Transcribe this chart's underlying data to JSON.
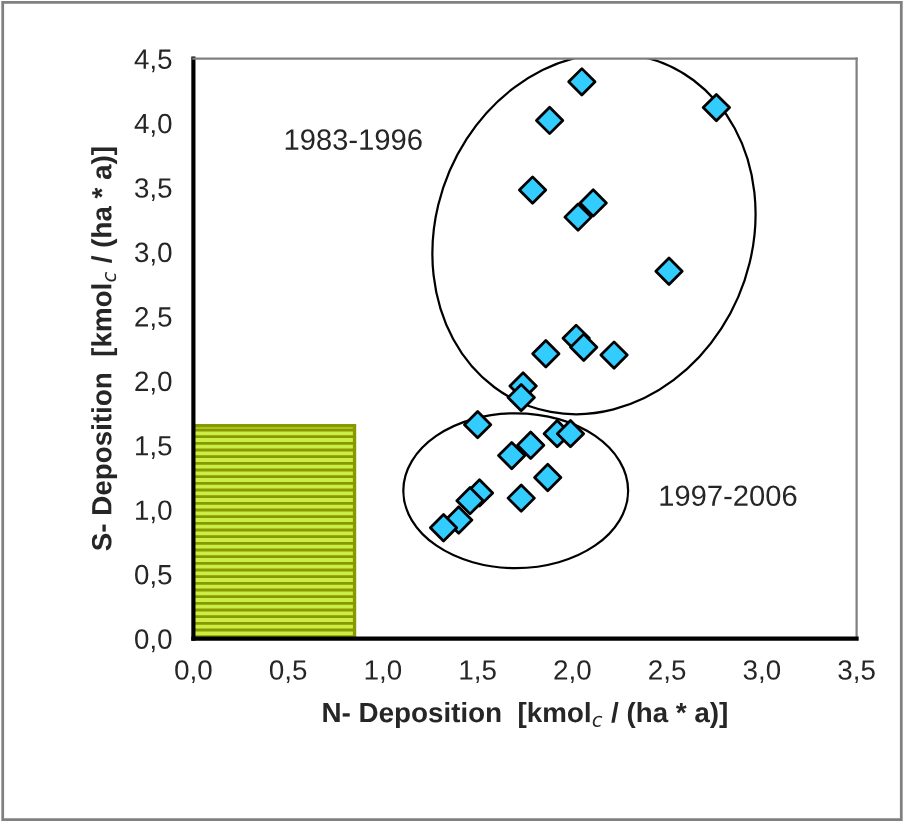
{
  "chart_data": {
    "type": "scatter",
    "xlabel": "N- Deposition  [kmol$_{c}$ / (ha * a)]",
    "ylabel": "S- Deposition  [kmol$_{c}$ / (ha * a)]",
    "x": [
      2.05,
      1.88,
      2.76,
      1.79,
      2.11,
      2.03,
      2.51,
      2.02,
      2.06,
      1.86,
      2.22,
      1.74,
      1.73,
      1.5,
      1.92,
      1.99,
      1.78,
      1.68,
      1.87,
      1.51,
      1.46,
      1.73,
      1.4,
      1.32
    ],
    "series": [
      {
        "color": "#33ccff",
        "values": [
          4.32,
          4.02,
          4.12,
          3.48,
          3.38,
          3.27,
          2.85,
          2.33,
          2.26,
          2.21,
          2.2,
          1.96,
          1.87,
          1.66,
          1.59,
          1.59,
          1.5,
          1.42,
          1.25,
          1.13,
          1.07,
          1.09,
          0.92,
          0.86
        ]
      }
    ],
    "marker": "diamond",
    "xlim": [
      0,
      3.5
    ],
    "xticks": [
      {
        "value": 0,
        "label": "0,0"
      },
      {
        "value": 0.5,
        "label": "0,5"
      },
      {
        "value": 1,
        "label": "1,0"
      },
      {
        "value": 1.5,
        "label": "1,5"
      },
      {
        "value": 2,
        "label": "2,0"
      },
      {
        "value": 2.5,
        "label": "2,5"
      },
      {
        "value": 3,
        "label": "3,0"
      },
      {
        "value": 3.5,
        "label": "3,5"
      }
    ],
    "ylim": [
      0,
      4.5
    ],
    "yticks": [
      {
        "value": 0,
        "label": "0,0"
      },
      {
        "value": 0.5,
        "label": "0,5"
      },
      {
        "value": 1,
        "label": "1,0"
      },
      {
        "value": 1.5,
        "label": "1,5"
      },
      {
        "value": 2,
        "label": "2,0"
      },
      {
        "value": 2.5,
        "label": "2,5"
      },
      {
        "value": 3,
        "label": "3,0"
      },
      {
        "value": 3.5,
        "label": "3,5"
      },
      {
        "value": 4,
        "label": "4,0"
      },
      {
        "value": 4.5,
        "label": "4,5"
      }
    ],
    "annotations": [
      "1983-1996",
      "1997-2006"
    ],
    "grid": false,
    "legend": false
  }
}
